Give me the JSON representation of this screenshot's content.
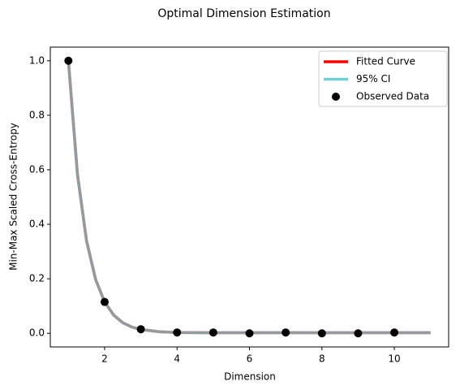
{
  "chart_data": {
    "type": "line",
    "title": "Optimal Dimension Estimation",
    "x_label": "Dimension",
    "y_label": "Min-Max Scaled Cross-Entropy",
    "xlim": [
      0.5,
      11.5
    ],
    "ylim": [
      -0.05,
      1.05
    ],
    "xticks": [
      2,
      4,
      6,
      8,
      10
    ],
    "yticks": [
      {
        "value": 0,
        "label": "0.0"
      },
      0.2,
      0.4,
      0.6,
      0.8,
      {
        "value": 1,
        "label": "1.0"
      }
    ],
    "legend": "upper right",
    "series": [
      {
        "name": "Fitted Curve",
        "kind": "line",
        "color": "#ff0000",
        "x": [
          1,
          1.25,
          1.5,
          1.75,
          2,
          2.25,
          2.5,
          2.75,
          3,
          3.5,
          4,
          5,
          6,
          7,
          8,
          9,
          10,
          11
        ],
        "values": [
          1.0,
          0.583,
          0.34,
          0.198,
          0.115,
          0.067,
          0.039,
          0.023,
          0.014,
          0.006,
          0.003,
          0.002,
          0.002,
          0.002,
          0.002,
          0.002,
          0.002,
          0.002
        ]
      },
      {
        "name": "95% CI",
        "kind": "line",
        "color": "#6dd0d4",
        "alpha": 0.75,
        "x": [
          1,
          1.25,
          1.5,
          1.75,
          2,
          2.25,
          2.5,
          2.75,
          3,
          3.5,
          4,
          5,
          6,
          7,
          8,
          9,
          10,
          11
        ],
        "values": [
          1.0,
          0.583,
          0.34,
          0.198,
          0.115,
          0.067,
          0.039,
          0.023,
          0.014,
          0.006,
          0.003,
          0.002,
          0.002,
          0.002,
          0.002,
          0.002,
          0.002,
          0.002
        ]
      },
      {
        "name": "Observed Data",
        "kind": "scatter",
        "color": "#000000",
        "x": [
          1,
          2,
          3,
          4,
          5,
          6,
          7,
          8,
          9,
          10
        ],
        "values": [
          1.0,
          0.115,
          0.015,
          0.003,
          0.003,
          0.0,
          0.003,
          0.0,
          0.0,
          0.003
        ]
      }
    ]
  }
}
